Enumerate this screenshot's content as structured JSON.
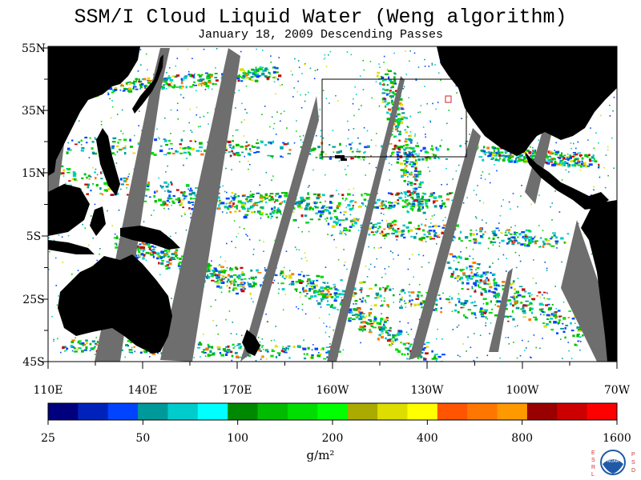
{
  "title": "SSM/I Cloud Liquid Water (Weng algorithm)",
  "subtitle": "January 18, 2009  Descending Passes",
  "lat_labels": [
    "55N",
    "35N",
    "15N",
    "5S",
    "25S",
    "45S"
  ],
  "lon_labels": [
    "110E",
    "140E",
    "170E",
    "160W",
    "130W",
    "100W",
    "70W"
  ],
  "colorbar": {
    "colors": [
      "#00007f",
      "#0022bb",
      "#0044ff",
      "#009999",
      "#00cccc",
      "#00ffff",
      "#008800",
      "#00bb00",
      "#00dd00",
      "#00ff00",
      "#aaaa00",
      "#dddd00",
      "#ffff00",
      "#ff5500",
      "#ff7700",
      "#ff9900",
      "#990000",
      "#cc0000",
      "#ff0000"
    ],
    "tick_labels": [
      "25",
      "50",
      "100",
      "200",
      "400",
      "800",
      "1600"
    ]
  },
  "units": "g/m²",
  "logo": {
    "left_letters": [
      "E",
      "S",
      "R",
      "L"
    ],
    "right_letters": [
      "P",
      "S",
      "D"
    ],
    "center_text": "NOAA",
    "accent": "#d03030"
  },
  "colors": {
    "land": "#000000",
    "gap": "#6e6e6e",
    "ocean": "#ffffff"
  }
}
